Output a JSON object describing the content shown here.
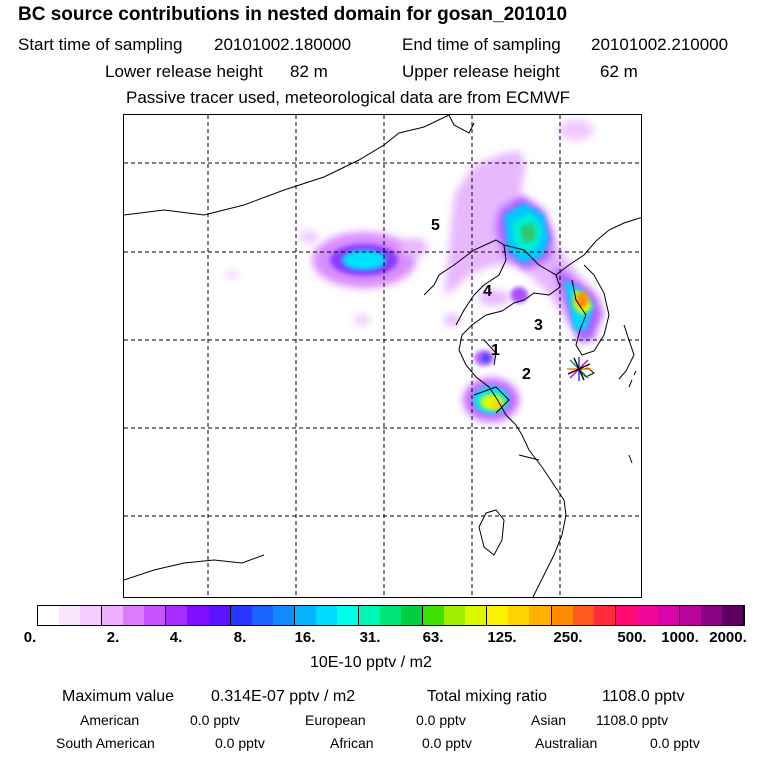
{
  "title": "BC  source contributions in nested domain for gosan_201010",
  "sampling": {
    "start_label": "Start time of sampling",
    "start_value": "20101002.180000",
    "end_label": "End time of sampling",
    "end_value": "20101002.210000"
  },
  "release": {
    "lower_label": "Lower release height",
    "lower_value": "82 m",
    "upper_label": "Upper release height",
    "upper_value": "62 m"
  },
  "note": "Passive tracer used, meteorological data are from ECMWF",
  "map": {
    "region_labels": [
      "1",
      "2",
      "3",
      "4",
      "5"
    ],
    "receptor_marker": "star-icon"
  },
  "colorbar": {
    "ticks": [
      "0.",
      "2.",
      "4.",
      "8.",
      "16.",
      "31.",
      "63.",
      "125.",
      "250.",
      "500.",
      "1000.",
      "2000."
    ],
    "unit": "10E-10 pptv / m2",
    "colors": [
      "#ffffff",
      "#fbe6ff",
      "#f6ccff",
      "#eeb0ff",
      "#d97cff",
      "#c653ff",
      "#a62cff",
      "#7e10ff",
      "#5a14ff",
      "#2d36ff",
      "#1c64ff",
      "#0f8cff",
      "#08b2ff",
      "#00dcff",
      "#00ffe8",
      "#00f7b8",
      "#00e57a",
      "#00d040",
      "#3ee000",
      "#9cf000",
      "#dcf800",
      "#fff200",
      "#ffd200",
      "#ffb000",
      "#ff8a00",
      "#ff5a1e",
      "#ff2a3c",
      "#ff0a6e",
      "#f0089a",
      "#d806a8",
      "#b8049c",
      "#8c0282",
      "#5e0060"
    ]
  },
  "stats": {
    "max_label": "Maximum value",
    "max_value": "0.314E-07 pptv / m2",
    "total_label": "Total mixing ratio",
    "total_value": "1108.0 pptv",
    "american_label": "American",
    "american_value": "0.0 pptv",
    "european_label": "European",
    "european_value": "0.0 pptv",
    "asian_label": "Asian",
    "asian_value": "1108.0 pptv",
    "south_american_label": "South American",
    "south_american_value": "0.0 pptv",
    "african_label": "African",
    "african_value": "0.0 pptv",
    "australian_label": "Australian",
    "australian_value": "0.0 pptv"
  }
}
